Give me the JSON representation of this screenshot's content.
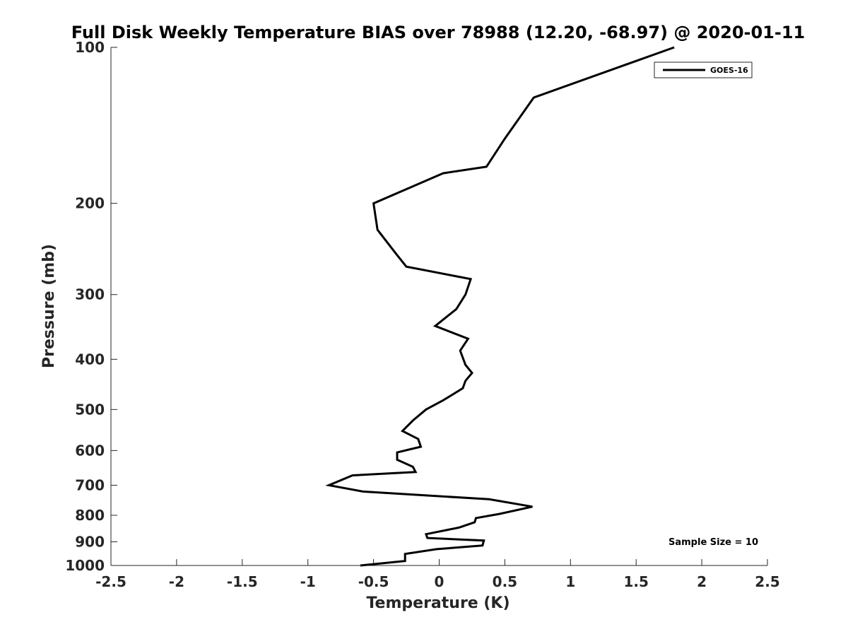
{
  "chart_data": {
    "type": "line",
    "title": "Full Disk Weekly Temperature BIAS over 78988 (12.20, -68.97) @ 2020-01-11",
    "xlabel": "Temperature (K)",
    "ylabel": "Pressure (mb)",
    "xlim": [
      -2.5,
      2.5
    ],
    "ylim": [
      1000,
      100
    ],
    "y_scale": "log",
    "y_reversed": true,
    "x_ticks": [
      "-2.5",
      "-2",
      "-1.5",
      "-1",
      "-0.5",
      "0",
      "0.5",
      "1",
      "1.5",
      "2",
      "2.5"
    ],
    "y_ticks": [
      "100",
      "200",
      "300",
      "400",
      "500",
      "600",
      "700",
      "800",
      "900",
      "1000"
    ],
    "grid": false,
    "legend_position": "top-right",
    "line_color": "#000000",
    "series": [
      {
        "name": "GOES-16",
        "points": [
          {
            "x": 1.79,
            "y": 100
          },
          {
            "x": 0.72,
            "y": 125
          },
          {
            "x": 0.5,
            "y": 150
          },
          {
            "x": 0.36,
            "y": 170
          },
          {
            "x": 0.03,
            "y": 175
          },
          {
            "x": -0.5,
            "y": 200
          },
          {
            "x": -0.47,
            "y": 225
          },
          {
            "x": -0.33,
            "y": 250
          },
          {
            "x": -0.25,
            "y": 265
          },
          {
            "x": 0.24,
            "y": 280
          },
          {
            "x": 0.2,
            "y": 300
          },
          {
            "x": 0.13,
            "y": 320
          },
          {
            "x": -0.03,
            "y": 345
          },
          {
            "x": 0.22,
            "y": 365
          },
          {
            "x": 0.16,
            "y": 385
          },
          {
            "x": 0.2,
            "y": 410
          },
          {
            "x": 0.25,
            "y": 425
          },
          {
            "x": 0.2,
            "y": 440
          },
          {
            "x": 0.18,
            "y": 455
          },
          {
            "x": 0.03,
            "y": 480
          },
          {
            "x": -0.1,
            "y": 500
          },
          {
            "x": -0.2,
            "y": 525
          },
          {
            "x": -0.28,
            "y": 550
          },
          {
            "x": -0.16,
            "y": 570
          },
          {
            "x": -0.14,
            "y": 590
          },
          {
            "x": -0.32,
            "y": 605
          },
          {
            "x": -0.32,
            "y": 625
          },
          {
            "x": -0.2,
            "y": 645
          },
          {
            "x": -0.18,
            "y": 660
          },
          {
            "x": -0.66,
            "y": 670
          },
          {
            "x": -0.84,
            "y": 700
          },
          {
            "x": -0.58,
            "y": 720
          },
          {
            "x": 0.38,
            "y": 745
          },
          {
            "x": 0.71,
            "y": 770
          },
          {
            "x": 0.46,
            "y": 795
          },
          {
            "x": 0.28,
            "y": 810
          },
          {
            "x": 0.27,
            "y": 825
          },
          {
            "x": 0.15,
            "y": 845
          },
          {
            "x": -0.1,
            "y": 870
          },
          {
            "x": -0.09,
            "y": 885
          },
          {
            "x": 0.34,
            "y": 895
          },
          {
            "x": 0.33,
            "y": 915
          },
          {
            "x": -0.02,
            "y": 930
          },
          {
            "x": -0.26,
            "y": 950
          },
          {
            "x": -0.26,
            "y": 980
          },
          {
            "x": -0.6,
            "y": 1000
          }
        ]
      }
    ],
    "annotations": [
      "Sample Size = 10"
    ]
  }
}
